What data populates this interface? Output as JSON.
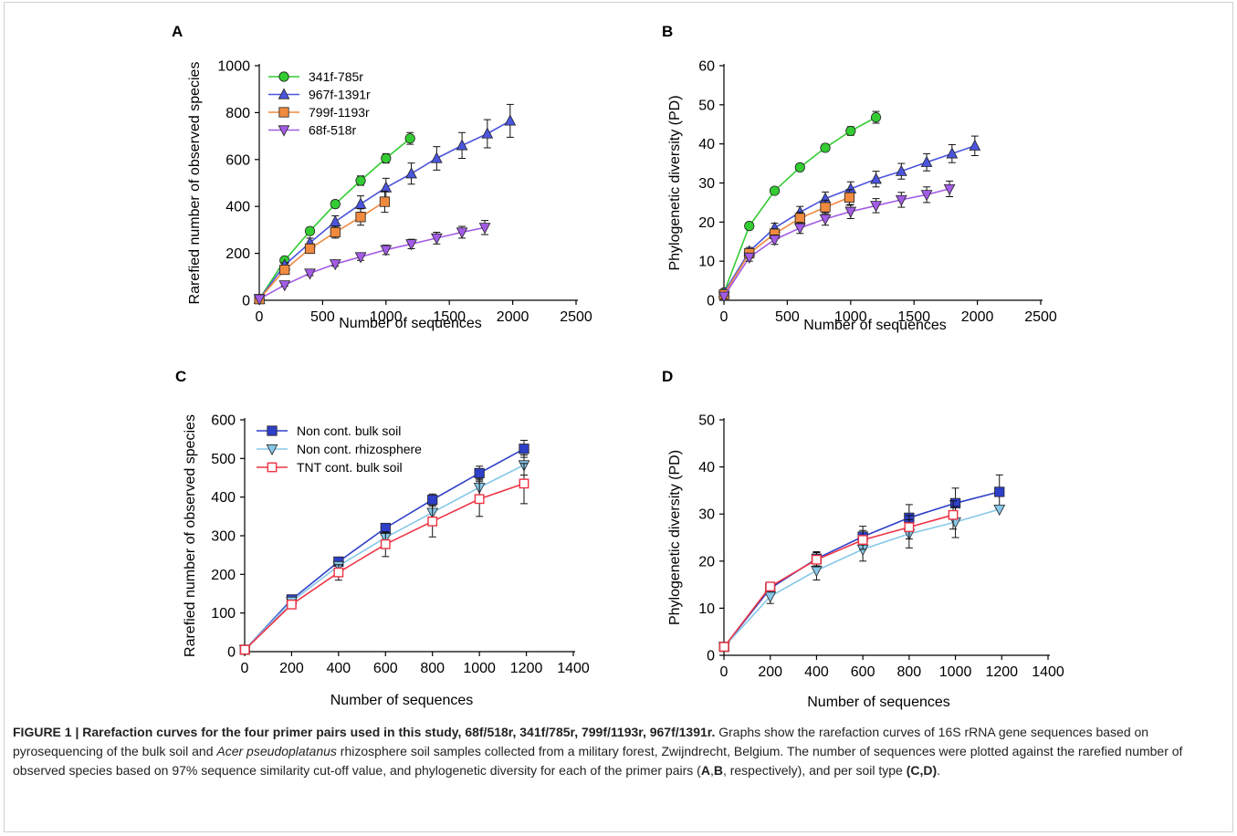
{
  "colors": {
    "341f-785r": "#33cc33",
    "967f-1391r": "#4b55dd",
    "799f-1193r": "#f08a3e",
    "68f-518r": "#a35ce6",
    "Non cont. bulk soil": "#2e3fc8",
    "Non cont. rhizosphere": "#86c8e8",
    "TNT cont. bulk soil": "#ee3344"
  },
  "chart_data": [
    {
      "panel": "A",
      "type": "line",
      "xlabel": "Number of sequences",
      "ylabel": "Rarefied number of observed species",
      "xlim": [
        0,
        2500
      ],
      "ylim": [
        0,
        1000
      ],
      "xticks": [
        0,
        500,
        1000,
        1500,
        2000,
        2500
      ],
      "yticks": [
        0,
        200,
        400,
        600,
        800,
        1000
      ],
      "legend_position": "top-left",
      "error_bars": true,
      "series": [
        {
          "name": "341f-785r",
          "marker": "circle",
          "x": [
            1,
            200,
            400,
            600,
            800,
            1000,
            1190
          ],
          "y": [
            5,
            170,
            295,
            410,
            510,
            605,
            690
          ],
          "err": [
            0,
            10,
            15,
            15,
            20,
            20,
            25
          ]
        },
        {
          "name": "967f-1391r",
          "marker": "triangle-up",
          "x": [
            1,
            200,
            400,
            600,
            800,
            1000,
            1200,
            1400,
            1600,
            1800,
            1980
          ],
          "y": [
            5,
            150,
            245,
            335,
            410,
            480,
            540,
            605,
            660,
            710,
            765
          ],
          "err": [
            0,
            10,
            20,
            25,
            35,
            40,
            45,
            50,
            55,
            60,
            70
          ]
        },
        {
          "name": "799f-1193r",
          "marker": "square",
          "x": [
            1,
            200,
            400,
            600,
            800,
            990
          ],
          "y": [
            5,
            130,
            220,
            290,
            355,
            420
          ],
          "err": [
            0,
            10,
            20,
            25,
            35,
            45
          ]
        },
        {
          "name": "68f-518r",
          "marker": "triangle-down",
          "x": [
            1,
            200,
            400,
            600,
            800,
            1000,
            1200,
            1400,
            1600,
            1780
          ],
          "y": [
            5,
            65,
            115,
            155,
            185,
            215,
            240,
            265,
            290,
            310
          ],
          "err": [
            0,
            5,
            10,
            10,
            15,
            20,
            20,
            25,
            25,
            30
          ]
        }
      ]
    },
    {
      "panel": "B",
      "type": "line",
      "xlabel": "Number of sequences",
      "ylabel": "Phylogenetic diversity (PD)",
      "xlim": [
        0,
        2500
      ],
      "ylim": [
        0,
        60
      ],
      "xticks": [
        0,
        500,
        1000,
        1500,
        2000,
        2500
      ],
      "yticks": [
        0,
        10,
        20,
        30,
        40,
        50,
        60
      ],
      "error_bars": true,
      "series": [
        {
          "name": "341f-785r",
          "marker": "circle",
          "x": [
            1,
            200,
            400,
            600,
            800,
            1000,
            1200
          ],
          "y": [
            2,
            19,
            28,
            34,
            39,
            43.3,
            46.8
          ],
          "err": [
            0,
            0.8,
            0.8,
            0.8,
            0.9,
            1.1,
            1.5
          ]
        },
        {
          "name": "967f-1391r",
          "marker": "triangle-up",
          "x": [
            1,
            200,
            400,
            600,
            800,
            1000,
            1200,
            1400,
            1600,
            1800,
            1980
          ],
          "y": [
            2,
            12.5,
            18.5,
            22.5,
            26,
            28.5,
            31,
            33,
            35.3,
            37.5,
            39.5
          ],
          "err": [
            0,
            1,
            1.2,
            1.5,
            1.7,
            1.8,
            2,
            2,
            2.2,
            2.3,
            2.5
          ]
        },
        {
          "name": "799f-1193r",
          "marker": "square",
          "x": [
            1,
            200,
            400,
            600,
            800,
            990
          ],
          "y": [
            1.5,
            12,
            17,
            21,
            23.8,
            26.3
          ],
          "err": [
            0,
            1,
            1.3,
            1.5,
            1.8,
            2
          ]
        },
        {
          "name": "68f-518r",
          "marker": "triangle-down",
          "x": [
            1,
            200,
            400,
            600,
            800,
            1000,
            1200,
            1400,
            1600,
            1780
          ],
          "y": [
            1,
            11,
            15.5,
            18.5,
            20.8,
            22.7,
            24.2,
            25.7,
            27,
            28.5
          ],
          "err": [
            0,
            1,
            1.2,
            1.4,
            1.6,
            1.8,
            1.8,
            1.9,
            2,
            2
          ]
        }
      ]
    },
    {
      "panel": "C",
      "type": "line",
      "xlabel": "Number of sequences",
      "ylabel": "Rarefied number of observed species",
      "xlim": [
        0,
        1400
      ],
      "ylim": [
        0,
        600
      ],
      "xticks": [
        0,
        200,
        400,
        600,
        800,
        1000,
        1200,
        1400
      ],
      "yticks": [
        0,
        100,
        200,
        300,
        400,
        500,
        600
      ],
      "legend_position": "top-left",
      "error_bars": true,
      "series": [
        {
          "name": "Non cont. bulk soil",
          "marker": "square-filled",
          "x": [
            1,
            200,
            400,
            600,
            800,
            1000,
            1190
          ],
          "y": [
            5,
            135,
            233,
            320,
            393,
            462,
            525
          ],
          "err": [
            0,
            5,
            8,
            10,
            15,
            18,
            22
          ]
        },
        {
          "name": "Non cont. rhizosphere",
          "marker": "triangle-down",
          "x": [
            1,
            200,
            400,
            600,
            800,
            1000,
            1190
          ],
          "y": [
            5,
            130,
            222,
            295,
            360,
            425,
            483
          ],
          "err": [
            0,
            6,
            10,
            14,
            18,
            22,
            26
          ]
        },
        {
          "name": "TNT cont. bulk soil",
          "marker": "square-open",
          "x": [
            1,
            200,
            400,
            600,
            800,
            1000,
            1190
          ],
          "y": [
            5,
            122,
            205,
            278,
            337,
            395,
            435
          ],
          "err": [
            0,
            8,
            20,
            32,
            40,
            45,
            52
          ]
        }
      ]
    },
    {
      "panel": "D",
      "type": "line",
      "xlabel": "Number of sequences",
      "ylabel": "Phylogenetic diversity (PD)",
      "xlim": [
        0,
        1400
      ],
      "ylim": [
        0,
        50
      ],
      "xticks": [
        0,
        200,
        400,
        600,
        800,
        1000,
        1200,
        1400
      ],
      "yticks": [
        0,
        10,
        20,
        30,
        40,
        50
      ],
      "error_bars": true,
      "series": [
        {
          "name": "Non cont. bulk soil",
          "marker": "square-filled",
          "x": [
            1,
            200,
            400,
            600,
            800,
            1000,
            1190
          ],
          "y": [
            1.8,
            14.2,
            20.5,
            25.2,
            29.2,
            32.3,
            34.7
          ],
          "err": [
            0,
            0.8,
            1.5,
            2.2,
            2.8,
            3.2,
            3.6
          ]
        },
        {
          "name": "Non cont. rhizosphere",
          "marker": "triangle-down",
          "x": [
            1,
            200,
            400,
            600,
            800,
            1000,
            1190
          ],
          "y": [
            1.8,
            12.5,
            18,
            22.5,
            25.8,
            28.3,
            31
          ],
          "err": [
            0,
            1.5,
            2,
            2.5,
            3,
            3.3,
            0
          ]
        },
        {
          "name": "TNT cont. bulk soil",
          "marker": "square-open",
          "x": [
            1,
            200,
            400,
            600,
            800,
            990
          ],
          "y": [
            1.8,
            14.6,
            20.3,
            24.5,
            27.2,
            29.8
          ],
          "err": [
            0,
            0.8,
            1.5,
            2,
            2.5,
            3
          ]
        }
      ]
    }
  ],
  "caption": {
    "title": "FIGURE 1 | Rarefaction curves for the four primer pairs used in this study, 68f/518r, 341f/785r, 799f/1193r, 967f/1391r.",
    "text1": " Graphs show the rarefaction curves of 16S rRNA gene sequences based on pyrosequencing of the bulk soil and ",
    "species": "Acer pseudoplatanus",
    "text2": " rhizosphere soil samples collected from a military forest, Zwijndrecht, Belgium. The number of sequences were plotted against the rarefied number of observed species based on 97% sequence similarity cut-off value, and phylogenetic diversity for each of the primer pairs (",
    "ref_a": "A",
    "comma": ",",
    "ref_b": "B",
    "text3": ", respectively), and per soil type ",
    "ref_cd": "(C,D)",
    "end": "."
  }
}
